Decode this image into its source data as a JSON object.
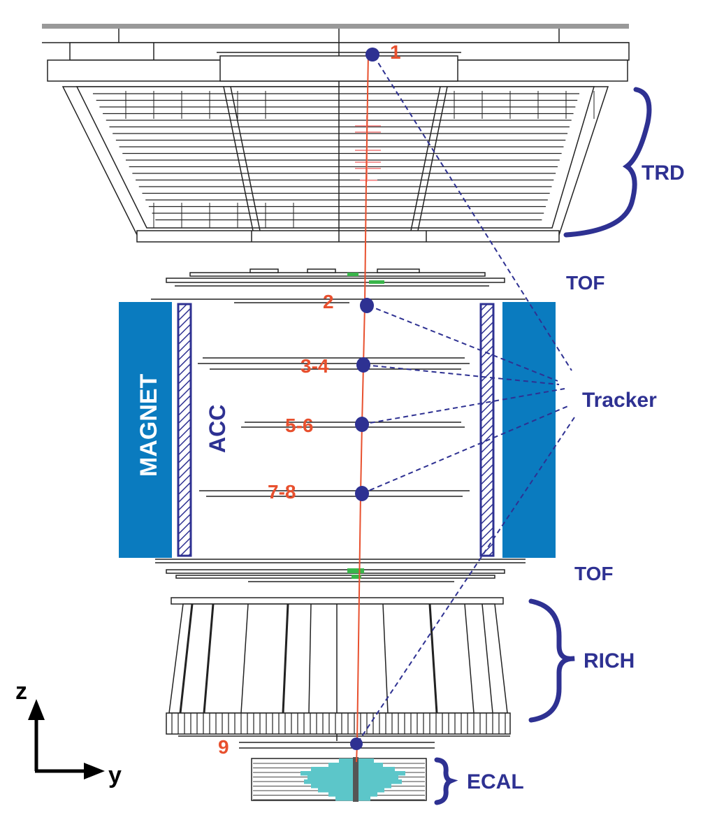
{
  "title": "",
  "colors": {
    "label": "#2e3192",
    "layer_number": "#e8502e",
    "track": "#e8502e",
    "magnet": "#0a7bbf",
    "acc": "#2e3192",
    "tof_hit": "#39b54a",
    "ecal_shower": "#5cc6c9",
    "outline": "#222222"
  },
  "detectors": {
    "trd": "TRD",
    "tof_upper": "TOF",
    "tracker": "Tracker",
    "magnet": "MAGNET",
    "acc": "ACC",
    "tof_lower": "TOF",
    "rich": "RICH",
    "ecal": "ECAL"
  },
  "tracker_layers": [
    "1",
    "2",
    "3-4",
    "5-6",
    "7-8",
    "9"
  ],
  "axes": {
    "vertical": "z",
    "horizontal": "y"
  },
  "icons": {
    "brace": "curly-brace-icon",
    "arrow": "arrow-icon"
  }
}
